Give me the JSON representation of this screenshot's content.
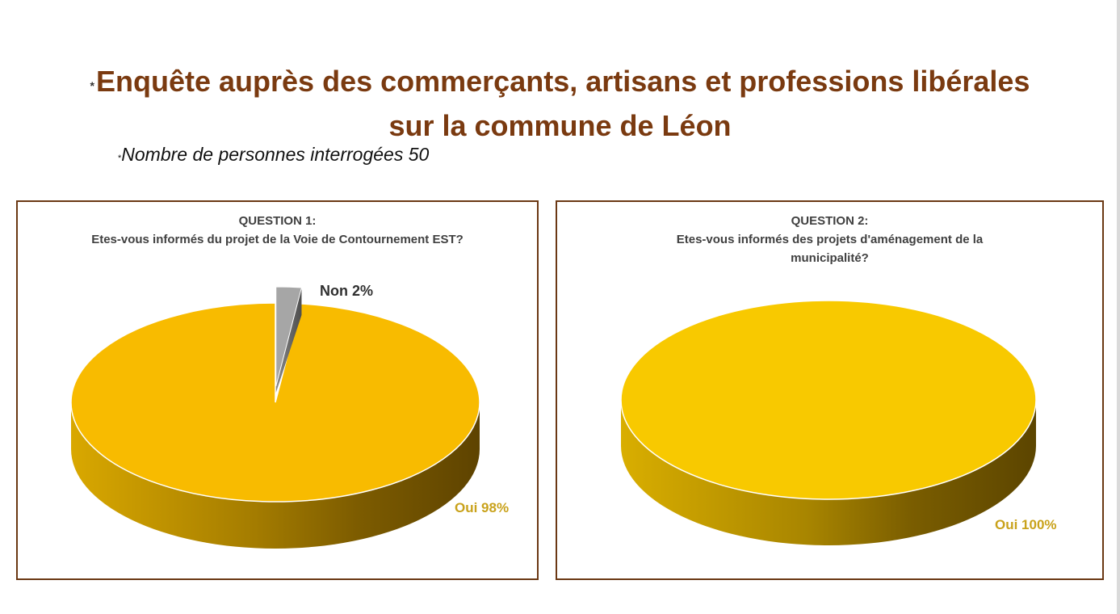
{
  "page": {
    "title_star": "*",
    "title_line1": "Enquête auprès des commerçants, artisans et professions libérales",
    "title_line2": "sur la commune de Léon",
    "subtitle_star": "*",
    "subtitle": "Nombre de personnes interrogées 50"
  },
  "colors": {
    "accent_brown": "#7a3a10",
    "border_brown": "#6b3814",
    "oui_top": "#f8bb00",
    "oui_top_q2": "#f8c900",
    "non_slice": "#a6a6a6",
    "label_gold": "#c9a21b"
  },
  "chart_data": [
    {
      "type": "pie",
      "title_line1": "QUESTION 1:",
      "title_line2": "Etes-vous informés du projet de la Voie de Contournement EST?",
      "categories": [
        "Oui",
        "Non"
      ],
      "values": [
        98,
        2
      ],
      "labels": [
        "Oui 98%",
        "Non 2%"
      ],
      "style": "3d-exploded"
    },
    {
      "type": "pie",
      "title_line1": "QUESTION 2:",
      "title_line2": "Etes-vous informés des projets d'aménagement de la municipalité?",
      "categories": [
        "Oui"
      ],
      "values": [
        100
      ],
      "labels": [
        "Oui 100%"
      ],
      "style": "3d"
    }
  ]
}
